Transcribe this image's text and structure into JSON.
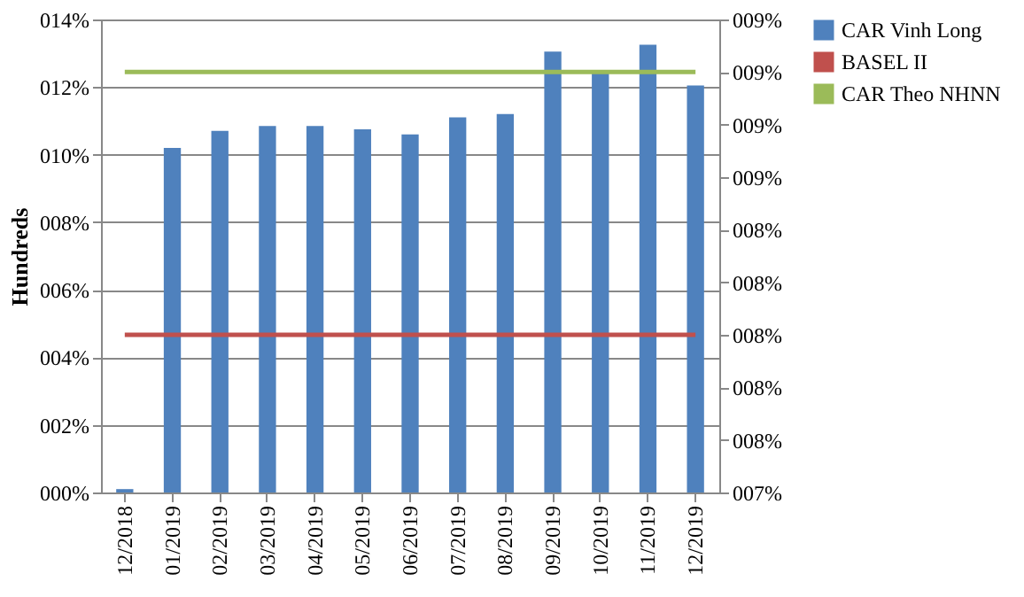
{
  "chart_data": {
    "type": "bar",
    "ylabel": "Hundreds",
    "categories": [
      "12/2018",
      "01/2019",
      "02/2019",
      "03/2019",
      "04/2019",
      "05/2019",
      "06/2019",
      "07/2019",
      "08/2019",
      "09/2019",
      "10/2019",
      "11/2019",
      "12/2019"
    ],
    "series": [
      {
        "name": "CAR Vinh Long",
        "color": "#4f81bd",
        "values": [
          0.1,
          10.2,
          10.7,
          10.85,
          10.85,
          10.75,
          10.6,
          11.1,
          11.2,
          13.05,
          12.4,
          13.25,
          12.05
        ]
      },
      {
        "name": "BASEL II",
        "type": "line",
        "axis": "y2",
        "color": "#c0504d",
        "values": [
          8.0,
          8.0,
          8.0,
          8.0,
          8.0,
          8.0,
          8.0,
          8.0,
          8.0,
          8.0,
          8.0,
          8.0,
          8.0
        ]
      },
      {
        "name": "CAR Theo NHNN",
        "type": "line",
        "axis": "y2",
        "color": "#9bbb59",
        "values": [
          9.0,
          9.0,
          9.0,
          9.0,
          9.0,
          9.0,
          9.0,
          9.0,
          9.0,
          9.0,
          9.0,
          9.0,
          9.0
        ]
      }
    ],
    "ylim": [
      0,
      14
    ],
    "yticks": [
      {
        "value": 0,
        "label": "000%"
      },
      {
        "value": 2,
        "label": "002%"
      },
      {
        "value": 4,
        "label": "004%"
      },
      {
        "value": 6,
        "label": "006%"
      },
      {
        "value": 8,
        "label": "008%"
      },
      {
        "value": 10,
        "label": "010%"
      },
      {
        "value": 12,
        "label": "012%"
      },
      {
        "value": 14,
        "label": "014%"
      }
    ],
    "y2lim": [
      7.4,
      9.2
    ],
    "y2ticks": [
      {
        "value": 7.4,
        "label": "007%"
      },
      {
        "value": 7.6,
        "label": "008%"
      },
      {
        "value": 7.8,
        "label": "008%"
      },
      {
        "value": 8.0,
        "label": "008%"
      },
      {
        "value": 8.2,
        "label": "008%"
      },
      {
        "value": 8.4,
        "label": "008%"
      },
      {
        "value": 8.6,
        "label": "009%"
      },
      {
        "value": 8.8,
        "label": "009%"
      },
      {
        "value": 9.0,
        "label": "009%"
      },
      {
        "value": 9.2,
        "label": "009%"
      }
    ],
    "grid": "y",
    "legend": "right",
    "line_style": "solid",
    "marker": "none"
  }
}
